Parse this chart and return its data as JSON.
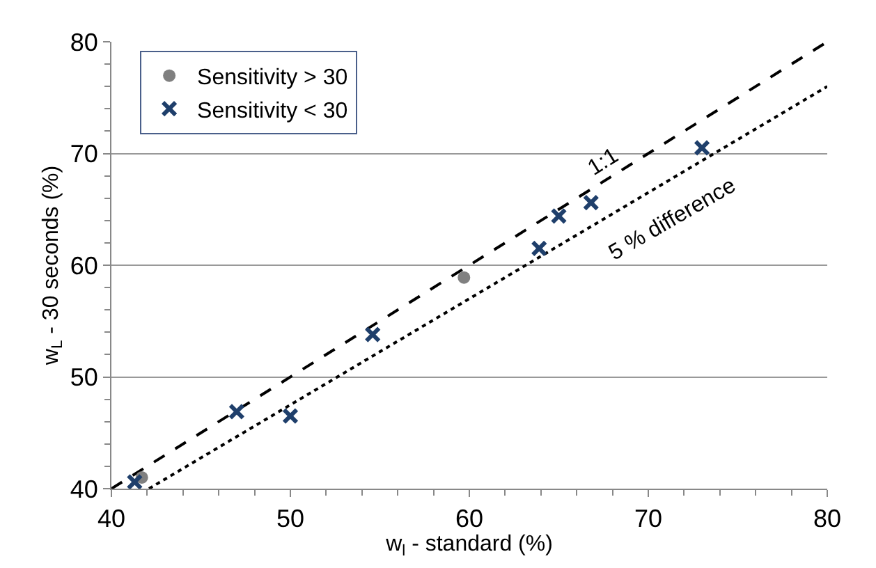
{
  "chart_data": {
    "type": "scatter",
    "xlabel": "w$_{l}$ - standard (%)",
    "ylabel": "w$_{L}$ - 30 seconds (%)",
    "xlim": [
      40,
      80
    ],
    "xticks": [
      40,
      50,
      60,
      70,
      80
    ],
    "ylim": [
      40,
      80
    ],
    "yticks": [
      40,
      50,
      60,
      70,
      80
    ],
    "grid": "y",
    "legend": "top left",
    "series": [
      {
        "name": "Sensitivity > 30",
        "color": "#808080",
        "marker": "circle",
        "x": [
          41.7,
          59.7
        ],
        "values": [
          41.0,
          58.9
        ]
      },
      {
        "name": "Sensitivity < 30",
        "color": "#1f3f6b",
        "marker": "cross",
        "x": [
          41.3,
          47.0,
          50.0,
          54.6,
          63.9,
          65.0,
          66.8,
          73.0
        ],
        "values": [
          40.6,
          46.9,
          46.5,
          53.8,
          61.5,
          64.4,
          65.6,
          70.5
        ]
      },
      {
        "type": "line",
        "color": "#000000",
        "line_style": "dashed",
        "marker": "none",
        "x": [
          40,
          80
        ],
        "values": [
          40,
          80
        ]
      },
      {
        "type": "line",
        "color": "#000000",
        "line_style": "dotted",
        "marker": "none",
        "x": [
          42.1,
          80
        ],
        "values": [
          40,
          76
        ]
      }
    ],
    "annotations": [
      {
        "text": "1:1",
        "x": 67.5,
        "y": 67.5
      },
      {
        "text": "5 % difference",
        "x": 71.4,
        "y": 67.8
      }
    ]
  }
}
